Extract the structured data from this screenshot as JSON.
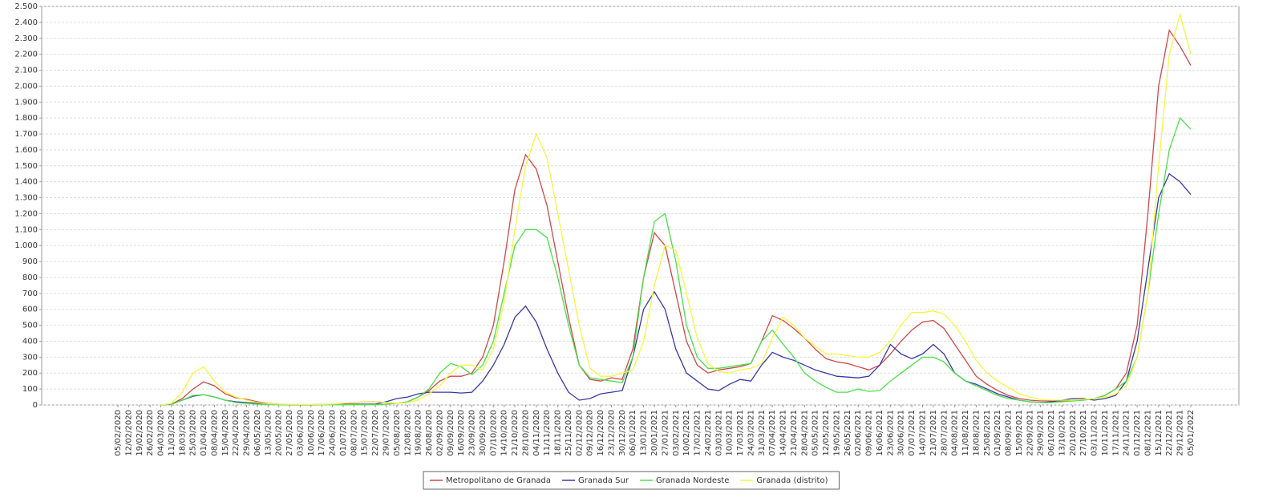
{
  "chart_data": {
    "type": "line",
    "categories": [
      "05/02/2020",
      "12/02/2020",
      "19/02/2020",
      "26/02/2020",
      "04/03/2020",
      "11/03/2020",
      "18/03/2020",
      "25/03/2020",
      "01/04/2020",
      "08/04/2020",
      "15/04/2020",
      "22/04/2020",
      "29/04/2020",
      "06/05/2020",
      "13/05/2020",
      "20/05/2020",
      "27/05/2020",
      "03/06/2020",
      "10/06/2020",
      "17/06/2020",
      "24/06/2020",
      "01/07/2020",
      "08/07/2020",
      "15/07/2020",
      "22/07/2020",
      "29/07/2020",
      "05/08/2020",
      "12/08/2020",
      "19/08/2020",
      "26/08/2020",
      "02/09/2020",
      "09/09/2020",
      "16/09/2020",
      "23/09/2020",
      "30/09/2020",
      "07/10/2020",
      "14/10/2020",
      "21/10/2020",
      "28/10/2020",
      "04/11/2020",
      "11/11/2020",
      "18/11/2020",
      "25/11/2020",
      "02/12/2020",
      "09/12/2020",
      "16/12/2020",
      "23/12/2020",
      "30/12/2020",
      "06/01/2021",
      "13/01/2021",
      "20/01/2021",
      "27/01/2021",
      "03/02/2021",
      "10/02/2021",
      "17/02/2021",
      "24/02/2021",
      "03/03/2021",
      "10/03/2021",
      "17/03/2021",
      "24/03/2021",
      "31/03/2021",
      "07/04/2021",
      "14/04/2021",
      "21/04/2021",
      "28/04/2021",
      "05/05/2021",
      "12/05/2021",
      "19/05/2021",
      "26/05/2021",
      "02/06/2021",
      "09/06/2021",
      "16/06/2021",
      "23/06/2021",
      "30/06/2021",
      "07/07/2021",
      "14/07/2021",
      "21/07/2021",
      "28/07/2021",
      "04/08/2021",
      "11/08/2021",
      "18/08/2021",
      "25/08/2021",
      "01/09/2021",
      "08/09/2021",
      "15/09/2021",
      "22/09/2021",
      "29/09/2021",
      "06/10/2021",
      "13/10/2021",
      "20/10/2021",
      "27/10/2021",
      "03/11/2021",
      "10/11/2021",
      "17/11/2021",
      "24/11/2021",
      "01/12/2021",
      "08/12/2021",
      "15/12/2021",
      "22/12/2021",
      "29/12/2021",
      "05/01/2022"
    ],
    "series": [
      {
        "name": "Metropolitano de Granada",
        "color": "#d04848",
        "values": [
          null,
          null,
          null,
          null,
          0,
          5,
          40,
          100,
          145,
          120,
          70,
          45,
          35,
          20,
          10,
          5,
          3,
          2,
          2,
          3,
          5,
          10,
          15,
          20,
          20,
          15,
          10,
          20,
          50,
          90,
          150,
          180,
          180,
          200,
          300,
          500,
          900,
          1350,
          1570,
          1480,
          1250,
          900,
          550,
          250,
          160,
          150,
          170,
          160,
          350,
          800,
          1080,
          1000,
          700,
          400,
          250,
          200,
          220,
          230,
          240,
          260,
          400,
          560,
          530,
          480,
          420,
          350,
          290,
          270,
          260,
          240,
          220,
          250,
          320,
          400,
          470,
          520,
          530,
          480,
          380,
          280,
          180,
          130,
          90,
          60,
          40,
          30,
          25,
          25,
          25,
          30,
          30,
          40,
          60,
          100,
          200,
          500,
          1200,
          2000,
          2350,
          2250,
          2130
        ]
      },
      {
        "name": "Granada Sur",
        "color": "#3838a8",
        "values": [
          null,
          null,
          null,
          null,
          0,
          5,
          30,
          55,
          65,
          50,
          30,
          20,
          15,
          10,
          5,
          3,
          2,
          2,
          2,
          3,
          5,
          5,
          5,
          5,
          5,
          20,
          40,
          50,
          70,
          80,
          80,
          80,
          75,
          80,
          150,
          250,
          380,
          550,
          620,
          520,
          350,
          200,
          80,
          30,
          40,
          70,
          80,
          90,
          300,
          600,
          710,
          600,
          350,
          200,
          150,
          100,
          90,
          130,
          160,
          150,
          250,
          330,
          300,
          280,
          250,
          220,
          200,
          180,
          175,
          170,
          180,
          250,
          380,
          320,
          290,
          320,
          380,
          320,
          200,
          150,
          130,
          100,
          70,
          50,
          30,
          20,
          15,
          20,
          30,
          40,
          40,
          30,
          40,
          60,
          150,
          400,
          850,
          1300,
          1450,
          1400,
          1320
        ]
      },
      {
        "name": "Granada Nordeste",
        "color": "#48e048",
        "values": [
          null,
          null,
          null,
          null,
          0,
          5,
          30,
          60,
          65,
          50,
          30,
          15,
          10,
          5,
          3,
          2,
          2,
          2,
          2,
          2,
          2,
          2,
          2,
          2,
          2,
          5,
          10,
          20,
          50,
          100,
          200,
          260,
          240,
          190,
          250,
          400,
          700,
          1000,
          1100,
          1100,
          1050,
          800,
          500,
          250,
          170,
          160,
          150,
          140,
          300,
          800,
          1150,
          1200,
          900,
          500,
          300,
          230,
          230,
          240,
          250,
          260,
          400,
          470,
          380,
          300,
          200,
          150,
          110,
          80,
          80,
          100,
          85,
          90,
          150,
          200,
          250,
          300,
          300,
          270,
          200,
          150,
          120,
          90,
          60,
          40,
          30,
          20,
          15,
          15,
          20,
          25,
          30,
          40,
          60,
          100,
          150,
          300,
          700,
          1200,
          1600,
          1800,
          1730
        ]
      },
      {
        "name": "Granada (distrito)",
        "color": "#f6f640",
        "values": [
          null,
          null,
          null,
          null,
          0,
          10,
          80,
          200,
          240,
          150,
          80,
          50,
          30,
          15,
          8,
          5,
          4,
          3,
          3,
          4,
          6,
          10,
          15,
          20,
          20,
          15,
          10,
          15,
          30,
          70,
          120,
          200,
          250,
          250,
          220,
          350,
          650,
          1100,
          1500,
          1700,
          1550,
          1200,
          850,
          500,
          230,
          180,
          180,
          200,
          220,
          400,
          750,
          1000,
          970,
          700,
          420,
          260,
          210,
          200,
          220,
          230,
          260,
          420,
          550,
          500,
          420,
          370,
          320,
          320,
          310,
          300,
          300,
          330,
          400,
          500,
          580,
          580,
          590,
          570,
          500,
          400,
          280,
          200,
          150,
          110,
          70,
          50,
          35,
          30,
          30,
          30,
          35,
          40,
          50,
          70,
          120,
          300,
          700,
          1500,
          2200,
          2450,
          2200
        ]
      }
    ],
    "ylim": [
      0,
      2500
    ],
    "yticks": [
      0,
      100,
      200,
      300,
      400,
      500,
      600,
      700,
      800,
      900,
      {
        "value": 1000,
        "label": "1.000"
      },
      {
        "value": 1100,
        "label": "1.100"
      },
      {
        "value": 1200,
        "label": "1.200"
      },
      {
        "value": 1300,
        "label": "1.300"
      },
      {
        "value": 1400,
        "label": "1.400"
      },
      {
        "value": 1500,
        "label": "1.500"
      },
      {
        "value": 1600,
        "label": "1.600"
      },
      {
        "value": 1700,
        "label": "1.700"
      },
      {
        "value": 1800,
        "label": "1.800"
      },
      {
        "value": 1900,
        "label": "1.900"
      },
      {
        "value": 2000,
        "label": "2.000"
      },
      {
        "value": 2100,
        "label": "2.100"
      },
      {
        "value": 2200,
        "label": "2.200"
      },
      {
        "value": 2300,
        "label": "2.300"
      },
      {
        "value": 2400,
        "label": "2.400"
      },
      {
        "value": 2500,
        "label": "2.500"
      }
    ],
    "grid": true,
    "legend": "bottom"
  }
}
